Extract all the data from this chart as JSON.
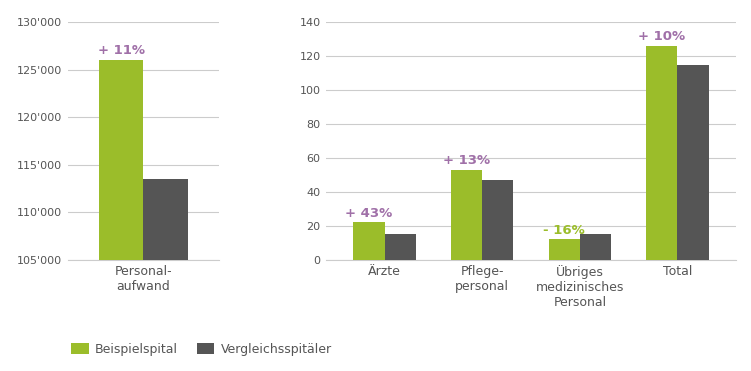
{
  "left_chart": {
    "categories": [
      "Personal-\naufwand"
    ],
    "beispiel": [
      126000
    ],
    "vergleich": [
      113500
    ],
    "ylim": [
      105000,
      130000
    ],
    "yticks": [
      105000,
      110000,
      115000,
      120000,
      125000,
      130000
    ],
    "ytick_labels": [
      "105'000",
      "110'000",
      "115'000",
      "120'000",
      "125'000",
      "130'000"
    ],
    "annotations": [
      "+ 11%"
    ]
  },
  "right_chart": {
    "categories": [
      "Ärzte",
      "Pflege-\npersonal",
      "Übriges\nmedizinisches\nPersonal",
      "Total"
    ],
    "beispiel": [
      22,
      53,
      12,
      126
    ],
    "vergleich": [
      15,
      47,
      15,
      115
    ],
    "ylim": [
      0,
      140
    ],
    "yticks": [
      0,
      20,
      40,
      60,
      80,
      100,
      120,
      140
    ],
    "annotations": [
      "+ 43%",
      "+ 13%",
      "- 16%",
      "+ 10%"
    ]
  },
  "bar_width": 0.32,
  "color_beispiel": "#9BBD2A",
  "color_vergleich": "#555555",
  "annotation_color": "#A070A8",
  "annotation_color_neg": "#9BBD2A",
  "legend_labels": [
    "Beispielspital",
    "Vergleichsspitäler"
  ],
  "background_color": "#ffffff",
  "grid_color": "#cccccc",
  "font_color": "#555555"
}
